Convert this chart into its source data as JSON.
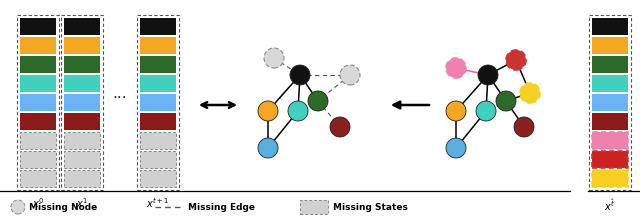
{
  "bg_color": "#ffffff",
  "colors_main": [
    "#111111",
    "#f5a623",
    "#2d6a27",
    "#40d0c0",
    "#6ab4f5",
    "#8b1a1a"
  ],
  "colors_right": [
    "#111111",
    "#f5a623",
    "#2d6a27",
    "#40d0c0",
    "#6ab4f5",
    "#8b1a1a",
    "#f080b0",
    "#cc2222",
    "#f5d020"
  ],
  "col_labels": [
    "$x^{0}$",
    "$x^{1}$",
    "$x^{t+1}$"
  ],
  "right_label": "$x^{\\hat{t}}$",
  "node_colors_g1": {
    "black": "#111111",
    "orange": "#f5a623",
    "green": "#2d6a27",
    "cyan": "#40d0c0",
    "blue": "#5aafe0",
    "darkred": "#8b2020"
  },
  "node_colors_g2": {
    "black": "#111111",
    "orange": "#f5a623",
    "green": "#2d6a27",
    "cyan": "#40d0c0",
    "blue": "#5aafe0",
    "darkred": "#8b2020",
    "pink": "#f080b0",
    "red2": "#cc3333",
    "yellow": "#f5d020"
  }
}
